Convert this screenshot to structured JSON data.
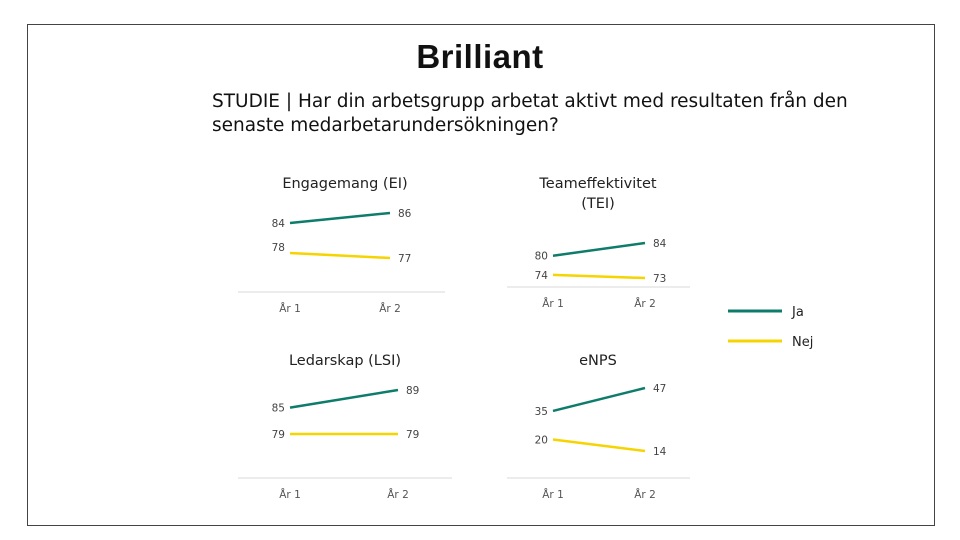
{
  "logo": "Brilliant",
  "question": "STUDIE | Har din arbetsgrupp arbetat aktivt med resultaten från den senaste medarbetarundersökningen?",
  "colors": {
    "Ja": "#0e7c6b",
    "Nej": "#f5d400",
    "axis": "#d9d9d9"
  },
  "legend": {
    "position": "right",
    "items": [
      "Ja",
      "Nej"
    ]
  },
  "chart_data": [
    {
      "type": "line",
      "title": [
        "Engagemang (EI)"
      ],
      "categories": [
        "År 1",
        "År 2"
      ],
      "series": [
        {
          "name": "Ja",
          "values": [
            84,
            86
          ]
        },
        {
          "name": "Nej",
          "values": [
            78,
            77
          ]
        }
      ]
    },
    {
      "type": "line",
      "title": [
        "Teameffektivitet",
        "(TEI)"
      ],
      "categories": [
        "År 1",
        "År 2"
      ],
      "series": [
        {
          "name": "Ja",
          "values": [
            80,
            84
          ]
        },
        {
          "name": "Nej",
          "values": [
            74,
            73
          ]
        }
      ]
    },
    {
      "type": "line",
      "title": [
        "Ledarskap (LSI)"
      ],
      "categories": [
        "År 1",
        "År 2"
      ],
      "series": [
        {
          "name": "Ja",
          "values": [
            85,
            89
          ]
        },
        {
          "name": "Nej",
          "values": [
            79,
            79
          ]
        }
      ]
    },
    {
      "type": "line",
      "title": [
        "eNPS"
      ],
      "categories": [
        "År 1",
        "År 2"
      ],
      "series": [
        {
          "name": "Ja",
          "values": [
            35,
            47
          ]
        },
        {
          "name": "Nej",
          "values": [
            20,
            14
          ]
        }
      ]
    }
  ]
}
